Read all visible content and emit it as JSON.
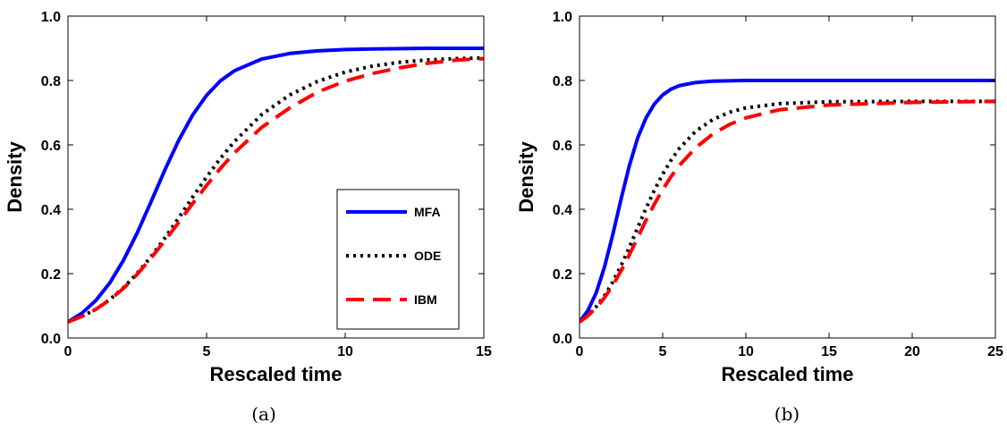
{
  "figure": {
    "captions": [
      "(a)",
      "(b)"
    ]
  },
  "series_styles": {
    "MFA": {
      "color": "#0000ff",
      "dash": ""
    },
    "ODE": {
      "color": "#000000",
      "dash": "dotted"
    },
    "IBM": {
      "color": "#ff0000",
      "dash": "dashed"
    }
  },
  "chart_data": [
    {
      "type": "line",
      "xlabel": "Rescaled time",
      "ylabel": "Density",
      "xlim": [
        0,
        15
      ],
      "ylim": [
        0,
        1.0
      ],
      "xticks": [
        "0",
        "5",
        "10",
        "15"
      ],
      "yticks": [
        "0.0",
        "0.2",
        "0.4",
        "0.6",
        "0.8",
        "1.0"
      ],
      "grid": false,
      "legend": {
        "position": "lower-right",
        "entries": [
          "MFA",
          "ODE",
          "IBM"
        ]
      },
      "series": [
        {
          "name": "MFA",
          "x": [
            0,
            0.5,
            1,
            1.5,
            2,
            2.5,
            3,
            3.5,
            4,
            4.5,
            5,
            5.5,
            6,
            7,
            8,
            9,
            10,
            11,
            12,
            13,
            14,
            15
          ],
          "y": [
            0.05,
            0.077,
            0.116,
            0.17,
            0.241,
            0.327,
            0.424,
            0.523,
            0.615,
            0.693,
            0.754,
            0.799,
            0.83,
            0.867,
            0.884,
            0.892,
            0.896,
            0.898,
            0.899,
            0.9,
            0.9,
            0.9
          ]
        },
        {
          "name": "ODE",
          "x": [
            0,
            0.5,
            1,
            1.5,
            2,
            2.5,
            3,
            3.5,
            4,
            4.5,
            5,
            5.5,
            6,
            7,
            8,
            9,
            10,
            11,
            12,
            13,
            14,
            15
          ],
          "y": [
            0.05,
            0.067,
            0.089,
            0.119,
            0.156,
            0.201,
            0.253,
            0.311,
            0.374,
            0.438,
            0.5,
            0.558,
            0.61,
            0.695,
            0.755,
            0.797,
            0.826,
            0.845,
            0.857,
            0.864,
            0.868,
            0.87
          ]
        },
        {
          "name": "IBM",
          "x": [
            0,
            0.5,
            1,
            1.5,
            2,
            2.5,
            3,
            3.5,
            4,
            4.5,
            5,
            5.5,
            6,
            7,
            8,
            9,
            10,
            11,
            12,
            13,
            14,
            15
          ],
          "y": [
            0.05,
            0.067,
            0.089,
            0.118,
            0.154,
            0.198,
            0.249,
            0.303,
            0.36,
            0.418,
            0.474,
            0.527,
            0.575,
            0.655,
            0.715,
            0.764,
            0.798,
            0.822,
            0.84,
            0.854,
            0.863,
            0.868
          ]
        }
      ]
    },
    {
      "type": "line",
      "xlabel": "Rescaled time",
      "ylabel": "Density",
      "xlim": [
        0,
        25
      ],
      "ylim": [
        0,
        1.0
      ],
      "xticks": [
        "0",
        "5",
        "10",
        "15",
        "20",
        "25"
      ],
      "yticks": [
        "0.0",
        "0.2",
        "0.4",
        "0.6",
        "0.8",
        "1.0"
      ],
      "grid": false,
      "legend": null,
      "series": [
        {
          "name": "MFA",
          "x": [
            0,
            0.5,
            1,
            1.5,
            2,
            2.5,
            3,
            3.5,
            4,
            4.5,
            5,
            5.5,
            6,
            7,
            8,
            9,
            10,
            12,
            15,
            20,
            25
          ],
          "y": [
            0.05,
            0.085,
            0.14,
            0.22,
            0.321,
            0.432,
            0.536,
            0.622,
            0.684,
            0.727,
            0.755,
            0.773,
            0.784,
            0.794,
            0.798,
            0.799,
            0.8,
            0.8,
            0.8,
            0.8,
            0.8
          ]
        },
        {
          "name": "ODE",
          "x": [
            0,
            0.5,
            1,
            1.5,
            2,
            2.5,
            3,
            3.5,
            4,
            4.5,
            5,
            5.5,
            6,
            7,
            8,
            9,
            10,
            12,
            15,
            20,
            25
          ],
          "y": [
            0.05,
            0.07,
            0.097,
            0.131,
            0.174,
            0.225,
            0.282,
            0.343,
            0.403,
            0.459,
            0.509,
            0.552,
            0.589,
            0.643,
            0.678,
            0.701,
            0.715,
            0.728,
            0.734,
            0.735,
            0.735
          ]
        },
        {
          "name": "IBM",
          "x": [
            0,
            0.5,
            1,
            1.5,
            2,
            2.5,
            3,
            3.5,
            4,
            4.5,
            5,
            5.5,
            6,
            7,
            8,
            9,
            10,
            12,
            15,
            20,
            25
          ],
          "y": [
            0.05,
            0.069,
            0.094,
            0.125,
            0.164,
            0.209,
            0.259,
            0.312,
            0.366,
            0.416,
            0.461,
            0.501,
            0.536,
            0.592,
            0.633,
            0.663,
            0.684,
            0.709,
            0.724,
            0.732,
            0.735
          ]
        }
      ]
    }
  ]
}
